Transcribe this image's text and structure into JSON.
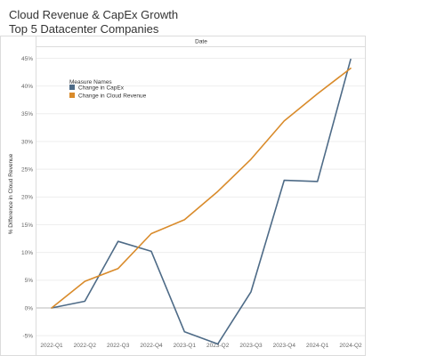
{
  "header": {
    "title": "Cloud Revenue & CapEx Growth",
    "subtitle": "Top 5 Datacenter Companies"
  },
  "chart_data": {
    "type": "line",
    "title": "Cloud Revenue & CapEx Growth",
    "subtitle": "Top 5 Datacenter Companies",
    "column_header": "Date",
    "ylabel": "% Difference in Cloud Revenue",
    "categories": [
      "2022-Q1",
      "2022-Q2",
      "2022-Q3",
      "2022-Q4",
      "2023-Q1",
      "2023-Q2",
      "2023-Q3",
      "2023-Q4",
      "2024-Q1",
      "2024-Q2"
    ],
    "y_ticks": [
      -5,
      0,
      5,
      10,
      15,
      20,
      25,
      30,
      35,
      40,
      45
    ],
    "y_tick_labels": [
      "-5%",
      "0%",
      "5%",
      "10%",
      "15%",
      "20%",
      "25%",
      "30%",
      "35%",
      "40%",
      "45%"
    ],
    "ylim": [
      -8.5,
      47
    ],
    "legend": {
      "title": "Measure Names",
      "position": "top-left"
    },
    "series": [
      {
        "name": "Change in CapEx",
        "color": "#4e6b87",
        "values": [
          0,
          1.2,
          12,
          10.2,
          -4.3,
          -6.5,
          2.9,
          23,
          22.8,
          44.8
        ]
      },
      {
        "name": "Change in Cloud Revenue",
        "color": "#d98b2b",
        "values": [
          0,
          4.8,
          7.1,
          13.4,
          15.9,
          21,
          26.8,
          33.7,
          38.6,
          43.2
        ]
      }
    ]
  }
}
